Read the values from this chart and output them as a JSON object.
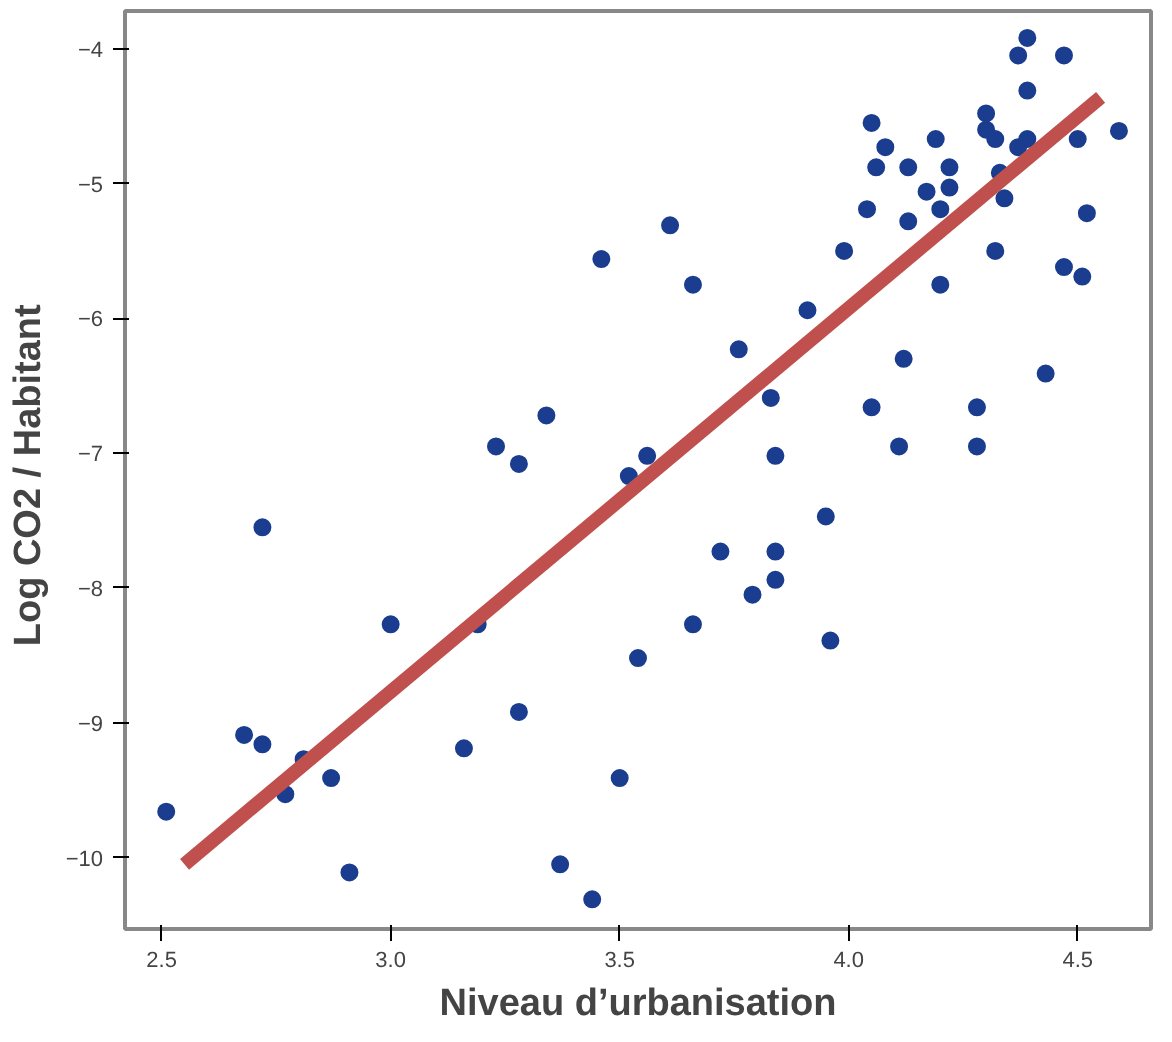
{
  "chart_data": {
    "type": "scatter",
    "xlabel": "Niveau d’urbanisation",
    "ylabel": "Log CO2  / Habitant",
    "xlim": [
      2.42,
      4.66
    ],
    "ylim": [
      -10.53,
      -3.72
    ],
    "xticks": [
      2.5,
      {
        "value": 3,
        "label": "3.0"
      },
      3.5,
      {
        "value": 4,
        "label": "4.0"
      },
      4.5
    ],
    "yticks": [
      -10,
      -9,
      -8,
      -7,
      -6,
      -5,
      -4
    ],
    "grid": false,
    "series": [
      {
        "marker": "circle",
        "color": "#1b3d8f",
        "x": [
          2.51,
          2.68,
          2.72,
          2.72,
          2.77,
          2.81,
          2.87,
          2.91,
          3.0,
          3.19,
          3.16,
          3.28,
          3.37,
          3.44,
          3.5,
          3.54,
          3.23,
          3.28,
          3.34,
          3.46,
          3.52,
          3.56,
          3.61,
          3.66,
          3.91,
          3.76,
          3.83,
          3.84,
          4.05,
          4.11,
          4.12,
          4.28,
          4.28,
          4.43,
          4.2,
          3.99,
          4.04,
          4.13,
          4.05,
          4.08,
          4.06,
          4.13,
          4.19,
          4.22,
          4.22,
          4.17,
          4.2,
          4.3,
          4.3,
          4.32,
          4.34,
          4.32,
          4.37,
          4.39,
          4.39,
          4.37,
          4.39,
          4.47,
          4.5,
          4.59,
          4.52,
          4.47,
          4.51,
          4.33,
          3.72,
          3.84,
          3.84,
          3.79,
          3.66,
          3.95,
          3.96
        ],
        "values": [
          -9.66,
          -9.09,
          -7.55,
          -9.16,
          -9.53,
          -9.27,
          -9.41,
          -10.11,
          -8.27,
          -8.27,
          -9.19,
          -8.92,
          -10.05,
          -10.31,
          -9.41,
          -8.52,
          -6.95,
          -7.08,
          -6.72,
          -5.56,
          -7.17,
          -7.02,
          -5.31,
          -5.75,
          -5.94,
          -6.23,
          -6.59,
          -7.02,
          -6.66,
          -6.95,
          -6.3,
          -6.66,
          -6.95,
          -6.41,
          -5.75,
          -5.5,
          -5.19,
          -5.28,
          -4.55,
          -4.73,
          -4.88,
          -4.88,
          -4.67,
          -4.88,
          -5.03,
          -5.06,
          -5.19,
          -4.48,
          -4.6,
          -4.67,
          -5.11,
          -5.5,
          -4.73,
          -4.67,
          -4.31,
          -4.05,
          -3.92,
          -4.05,
          -4.67,
          -4.61,
          -5.22,
          -5.62,
          -5.69,
          -4.92,
          -7.73,
          -7.73,
          -7.94,
          -8.05,
          -8.27,
          -7.47,
          -8.39
        ]
      },
      {
        "type": "line",
        "color": "#c0504d",
        "x": [
          2.55,
          4.55
        ],
        "values": [
          -10.05,
          -4.36
        ]
      }
    ]
  }
}
